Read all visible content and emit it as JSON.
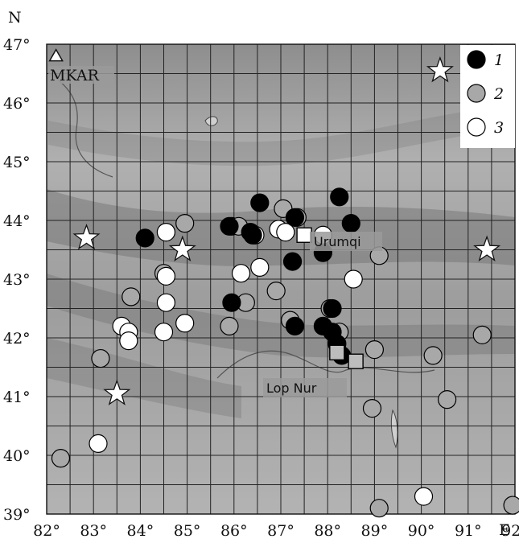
{
  "map": {
    "north_label": "N",
    "east_label": "E",
    "lon_ticks": [
      "82°",
      "83°",
      "84°",
      "85°",
      "86°",
      "87°",
      "88°",
      "89°",
      "90°",
      "91°",
      "92°"
    ],
    "lat_ticks": [
      "47°",
      "46°",
      "45°",
      "44°",
      "43°",
      "42°",
      "41°",
      "40°",
      "39°"
    ],
    "places": {
      "station": {
        "label": "MKAR",
        "lon": 82.2,
        "lat": 46.8
      },
      "urumqi": {
        "label": "Urumqi",
        "lon": 87.6,
        "lat": 43.8
      },
      "lop_nur": {
        "label": "Lop Nur",
        "lon": 88.2,
        "lat": 41.7
      }
    },
    "legend": [
      {
        "key": "1",
        "label": "1",
        "fill": "#000000"
      },
      {
        "key": "2",
        "label": "2",
        "fill": "#a8a8a8"
      },
      {
        "key": "3",
        "label": "3",
        "fill": "#ffffff"
      }
    ],
    "stars": [
      {
        "lon": 90.4,
        "lat": 46.55
      },
      {
        "lon": 82.85,
        "lat": 43.7
      },
      {
        "lon": 84.9,
        "lat": 43.5
      },
      {
        "lon": 91.4,
        "lat": 43.5
      },
      {
        "lon": 83.5,
        "lat": 41.05
      }
    ],
    "squares": [
      {
        "lon": 87.5,
        "lat": 43.75
      },
      {
        "lon": 88.2,
        "lat": 41.75
      },
      {
        "lon": 88.6,
        "lat": 41.6
      }
    ],
    "events": {
      "1": [
        [
          84.1,
          43.7
        ],
        [
          85.9,
          43.9
        ],
        [
          86.35,
          43.8
        ],
        [
          86.4,
          43.75
        ],
        [
          86.55,
          44.3
        ],
        [
          87.3,
          44.05
        ],
        [
          88.25,
          44.4
        ],
        [
          88.5,
          43.95
        ],
        [
          87.25,
          43.3
        ],
        [
          87.9,
          43.45
        ],
        [
          85.95,
          42.6
        ],
        [
          87.3,
          42.2
        ],
        [
          87.9,
          42.2
        ],
        [
          88.1,
          42.1
        ],
        [
          88.1,
          42.5
        ],
        [
          88.2,
          41.9
        ],
        [
          88.3,
          41.7
        ]
      ],
      "2": [
        [
          83.8,
          42.7
        ],
        [
          84.5,
          43.1
        ],
        [
          84.95,
          43.95
        ],
        [
          85.95,
          43.9
        ],
        [
          86.25,
          42.6
        ],
        [
          86.9,
          42.8
        ],
        [
          87.05,
          44.2
        ],
        [
          87.35,
          44.05
        ],
        [
          87.2,
          42.3
        ],
        [
          88.05,
          42.5
        ],
        [
          88.25,
          42.1
        ],
        [
          89.1,
          43.4
        ],
        [
          89.0,
          41.8
        ],
        [
          88.95,
          40.8
        ],
        [
          90.25,
          41.7
        ],
        [
          90.55,
          40.95
        ],
        [
          91.3,
          42.05
        ],
        [
          91.95,
          39.15
        ],
        [
          89.1,
          39.1
        ],
        [
          82.3,
          39.95
        ],
        [
          83.15,
          41.65
        ],
        [
          85.9,
          42.2
        ],
        [
          86.1,
          43.9
        ]
      ],
      "3": [
        [
          84.55,
          43.8
        ],
        [
          84.55,
          43.05
        ],
        [
          84.55,
          42.6
        ],
        [
          84.5,
          42.1
        ],
        [
          84.95,
          42.25
        ],
        [
          83.6,
          42.2
        ],
        [
          83.75,
          42.1
        ],
        [
          83.75,
          41.95
        ],
        [
          86.15,
          43.1
        ],
        [
          86.55,
          43.2
        ],
        [
          86.45,
          43.75
        ],
        [
          86.95,
          43.85
        ],
        [
          87.1,
          43.8
        ],
        [
          87.9,
          43.75
        ],
        [
          88.55,
          43.0
        ],
        [
          83.1,
          40.2
        ],
        [
          90.05,
          39.3
        ]
      ]
    }
  }
}
